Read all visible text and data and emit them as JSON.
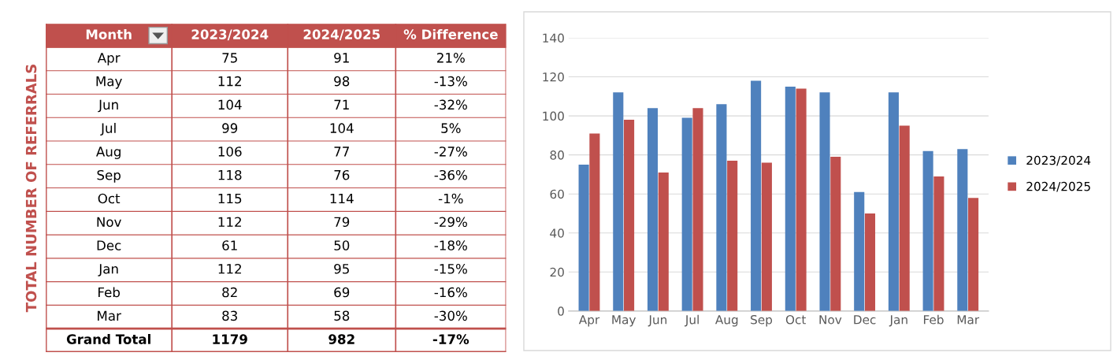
{
  "chart_data": [
    {
      "type": "other",
      "ylabel": "TOTAL NUMBER OF REFERRALS",
      "categories": [
        "Month",
        "2023/2024",
        "2024/2025",
        "% Difference"
      ],
      "annotations": [
        "Apr",
        "75",
        "91",
        "21%",
        "May",
        "112",
        "98",
        "-13%",
        "Jun",
        "104",
        "71",
        "-32%",
        "Jul",
        "99",
        "104",
        "5%",
        "Aug",
        "106",
        "77",
        "-27%",
        "Sep",
        "118",
        "76",
        "-36%",
        "Oct",
        "115",
        "114",
        "-1%",
        "Nov",
        "112",
        "79",
        "-29%",
        "Dec",
        "61",
        "50",
        "-18%",
        "Jan",
        "112",
        "95",
        "-15%",
        "Feb",
        "82",
        "69",
        "-16%",
        "Mar",
        "83",
        "58",
        "-30%",
        "Grand Total",
        "1179",
        "982",
        "-17%"
      ],
      "color": "#c0504d"
    },
    {
      "type": "bar",
      "categories": [
        "Apr",
        "May",
        "Jun",
        "Jul",
        "Aug",
        "Sep",
        "Oct",
        "Nov",
        "Dec",
        "Jan",
        "Feb",
        "Mar"
      ],
      "series": [
        {
          "name": "2023/2024",
          "color": "#4f81bd",
          "values": [
            75,
            112,
            104,
            99,
            106,
            118,
            115,
            112,
            61,
            112,
            82,
            83
          ]
        },
        {
          "name": "2024/2025",
          "color": "#c0504d",
          "values": [
            91,
            98,
            71,
            104,
            77,
            76,
            114,
            79,
            50,
            95,
            69,
            58
          ]
        }
      ],
      "ylim": [
        0,
        140
      ],
      "yticks": [
        0,
        20,
        40,
        60,
        80,
        100,
        120,
        140
      ],
      "grid": "y",
      "legend": "right"
    }
  ]
}
